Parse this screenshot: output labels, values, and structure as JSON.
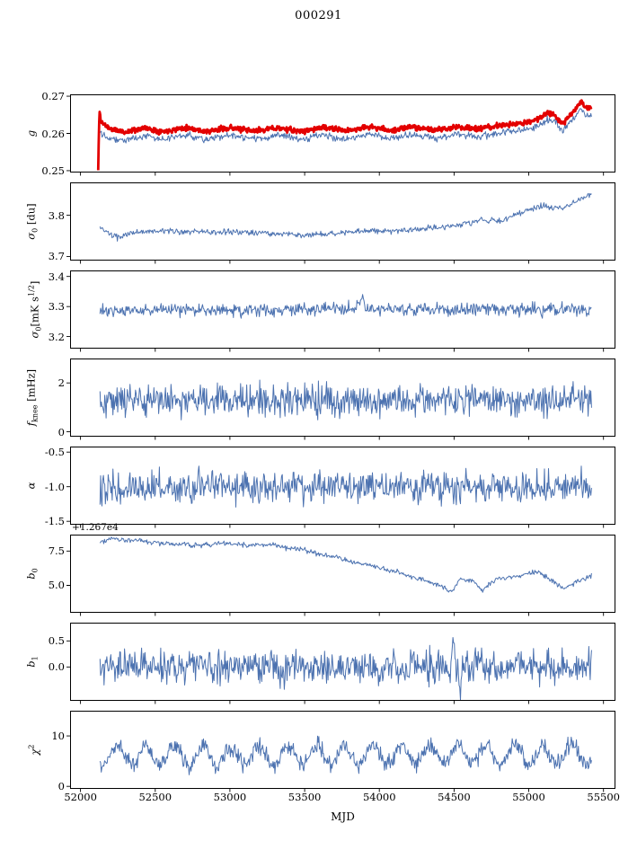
{
  "title": "000291",
  "xlabel": "MJD",
  "colors": {
    "line_blue": "#4c72b0",
    "line_red": "#e30000",
    "axis": "#000000"
  },
  "x_axis": {
    "lim": [
      51930,
      55580
    ],
    "ticks": [
      52000,
      52500,
      53000,
      53500,
      54000,
      54500,
      55000,
      55500
    ],
    "tick_labels": [
      "52000",
      "52500",
      "53000",
      "53500",
      "54000",
      "54500",
      "55000",
      "55500"
    ]
  },
  "chart_data": [
    {
      "id": "g",
      "type": "line",
      "ylabel_text": "g",
      "ylabel_parts": [
        {
          "t": "g",
          "style": "italic"
        }
      ],
      "ylim": [
        0.2495,
        0.2705
      ],
      "yticks": [
        0.25,
        0.26,
        0.27
      ],
      "ytick_labels": [
        "0.25",
        "0.26",
        "0.27"
      ],
      "series": [
        {
          "name": "g-blue",
          "color": "#4c72b0",
          "width": 1.0,
          "noise": 0.00045,
          "n": 700,
          "seed": 22,
          "x_range": [
            52130,
            55420
          ],
          "trend": [
            [
              52130,
              0.2606
            ],
            [
              52160,
              0.2596
            ],
            [
              52220,
              0.2586
            ],
            [
              52300,
              0.2581
            ],
            [
              52420,
              0.2594
            ],
            [
              52550,
              0.2584
            ],
            [
              52700,
              0.2595
            ],
            [
              52850,
              0.2584
            ],
            [
              53000,
              0.2595
            ],
            [
              53150,
              0.2585
            ],
            [
              53320,
              0.2594
            ],
            [
              53470,
              0.2584
            ],
            [
              53620,
              0.2595
            ],
            [
              53780,
              0.2586
            ],
            [
              53930,
              0.2597
            ],
            [
              54080,
              0.2587
            ],
            [
              54230,
              0.2597
            ],
            [
              54380,
              0.2587
            ],
            [
              54520,
              0.2597
            ],
            [
              54670,
              0.2591
            ],
            [
              54820,
              0.2602
            ],
            [
              54960,
              0.2608
            ],
            [
              55060,
              0.2618
            ],
            [
              55120,
              0.2638
            ],
            [
              55170,
              0.2632
            ],
            [
              55230,
              0.2608
            ],
            [
              55290,
              0.2638
            ],
            [
              55355,
              0.2664
            ],
            [
              55390,
              0.2645
            ],
            [
              55420,
              0.2652
            ]
          ]
        },
        {
          "name": "g-red",
          "color": "#e30000",
          "width": 2.8,
          "noise": 0.00035,
          "n": 1000,
          "seed": 11,
          "x_range": [
            52118,
            55420
          ],
          "trend": [
            [
              52118,
              0.25
            ],
            [
              52126,
              0.266
            ],
            [
              52140,
              0.263
            ],
            [
              52200,
              0.2612
            ],
            [
              52300,
              0.2603
            ],
            [
              52420,
              0.2615
            ],
            [
              52550,
              0.2605
            ],
            [
              52700,
              0.2616
            ],
            [
              52850,
              0.2605
            ],
            [
              53000,
              0.2616
            ],
            [
              53150,
              0.2606
            ],
            [
              53320,
              0.2615
            ],
            [
              53470,
              0.2605
            ],
            [
              53620,
              0.2616
            ],
            [
              53780,
              0.2607
            ],
            [
              53930,
              0.2618
            ],
            [
              54080,
              0.2608
            ],
            [
              54230,
              0.2618
            ],
            [
              54380,
              0.2608
            ],
            [
              54520,
              0.2618
            ],
            [
              54670,
              0.2612
            ],
            [
              54820,
              0.2622
            ],
            [
              54960,
              0.2627
            ],
            [
              55060,
              0.2638
            ],
            [
              55120,
              0.2656
            ],
            [
              55170,
              0.265
            ],
            [
              55230,
              0.2627
            ],
            [
              55290,
              0.2656
            ],
            [
              55355,
              0.2686
            ],
            [
              55390,
              0.2665
            ],
            [
              55420,
              0.2672
            ]
          ]
        }
      ]
    },
    {
      "id": "sigma0-du",
      "type": "line",
      "ylabel_text": "sigma_0 [du]",
      "ylabel_parts": [
        {
          "t": "σ",
          "style": "italic"
        },
        {
          "t": "0",
          "style": "sub"
        },
        {
          "t": " [du]"
        }
      ],
      "ylim": [
        3.69,
        3.88
      ],
      "yticks": [
        3.7,
        3.8
      ],
      "ytick_labels": [
        "3.7",
        "3.8"
      ],
      "series": [
        {
          "name": "sigma0-du",
          "color": "#4c72b0",
          "width": 1.0,
          "noise": 0.0035,
          "n": 650,
          "seed": 33,
          "x_range": [
            52130,
            55420
          ],
          "trend": [
            [
              52130,
              3.77
            ],
            [
              52200,
              3.752
            ],
            [
              52260,
              3.745
            ],
            [
              52340,
              3.758
            ],
            [
              52500,
              3.762
            ],
            [
              52700,
              3.76
            ],
            [
              52900,
              3.758
            ],
            [
              53100,
              3.76
            ],
            [
              53300,
              3.755
            ],
            [
              53500,
              3.752
            ],
            [
              53700,
              3.756
            ],
            [
              53900,
              3.762
            ],
            [
              54100,
              3.762
            ],
            [
              54300,
              3.768
            ],
            [
              54450,
              3.772
            ],
            [
              54600,
              3.782
            ],
            [
              54700,
              3.79
            ],
            [
              54800,
              3.785
            ],
            [
              54900,
              3.8
            ],
            [
              55000,
              3.812
            ],
            [
              55080,
              3.825
            ],
            [
              55150,
              3.82
            ],
            [
              55250,
              3.818
            ],
            [
              55320,
              3.835
            ],
            [
              55420,
              3.85
            ]
          ]
        }
      ]
    },
    {
      "id": "sigma0-mks",
      "type": "line",
      "ylabel_text": "sigma_0 [mK s^1/2]",
      "ylabel_parts": [
        {
          "t": "σ",
          "style": "italic"
        },
        {
          "t": "0",
          "style": "sub"
        },
        {
          "t": "[mK s"
        },
        {
          "t": "1/2",
          "style": "sup"
        },
        {
          "t": "]"
        }
      ],
      "ylim": [
        3.16,
        3.42
      ],
      "yticks": [
        3.2,
        3.3,
        3.4
      ],
      "ytick_labels": [
        "3.2",
        "3.3",
        "3.4"
      ],
      "series": [
        {
          "name": "sigma0-mks",
          "color": "#4c72b0",
          "width": 1.0,
          "noise": 0.011,
          "n": 700,
          "seed": 44,
          "x_range": [
            52130,
            55420
          ],
          "trend": [
            [
              52130,
              3.285
            ],
            [
              52800,
              3.29
            ],
            [
              53400,
              3.288
            ],
            [
              53850,
              3.295
            ],
            [
              53880,
              3.33
            ],
            [
              53910,
              3.295
            ],
            [
              54300,
              3.29
            ],
            [
              54800,
              3.292
            ],
            [
              55420,
              3.29
            ]
          ]
        }
      ]
    },
    {
      "id": "fknee",
      "type": "line",
      "ylabel_text": "f_knee [mHz]",
      "ylabel_parts": [
        {
          "t": "f",
          "style": "italic"
        },
        {
          "t": "knee",
          "style": "sub"
        },
        {
          "t": " [mHz]"
        }
      ],
      "ylim": [
        -0.2,
        3.0
      ],
      "yticks": [
        0,
        2
      ],
      "ytick_labels": [
        "0",
        "2"
      ],
      "series": [
        {
          "name": "fknee",
          "color": "#4c72b0",
          "width": 1.0,
          "noise": 0.32,
          "n": 720,
          "seed": 55,
          "x_range": [
            52130,
            55420
          ],
          "trend": [
            [
              52130,
              1.32
            ],
            [
              53000,
              1.3
            ],
            [
              54000,
              1.28
            ],
            [
              55420,
              1.26
            ]
          ]
        }
      ]
    },
    {
      "id": "alpha",
      "type": "line",
      "ylabel_text": "alpha",
      "ylabel_parts": [
        {
          "t": "α",
          "style": "italic"
        }
      ],
      "ylim": [
        -1.55,
        -0.42
      ],
      "yticks": [
        -1.5,
        -1.0,
        -0.5
      ],
      "ytick_labels": [
        "-1.5",
        "-1.0",
        "-0.5"
      ],
      "series": [
        {
          "name": "alpha",
          "color": "#4c72b0",
          "width": 1.0,
          "noise": 0.115,
          "n": 720,
          "seed": 66,
          "x_range": [
            52130,
            55420
          ],
          "trend": [
            [
              52130,
              -1.0
            ],
            [
              55420,
              -1.0
            ]
          ]
        }
      ]
    },
    {
      "id": "b0",
      "type": "line",
      "ylabel_text": "b_0",
      "ylabel_parts": [
        {
          "t": "b",
          "style": "italic"
        },
        {
          "t": "0",
          "style": "sub"
        }
      ],
      "offset_text": "+1.267e4",
      "ylim": [
        3.0,
        8.7
      ],
      "yticks": [
        5.0,
        7.5
      ],
      "ytick_labels": [
        "5.0",
        "7.5"
      ],
      "series": [
        {
          "name": "b0",
          "color": "#4c72b0",
          "width": 1.0,
          "noise": 0.09,
          "n": 650,
          "seed": 77,
          "x_range": [
            52130,
            55420
          ],
          "trend": [
            [
              52130,
              8.15
            ],
            [
              52200,
              8.45
            ],
            [
              52280,
              8.35
            ],
            [
              52400,
              8.25
            ],
            [
              52550,
              8.05
            ],
            [
              52700,
              7.95
            ],
            [
              52850,
              7.95
            ],
            [
              53000,
              8.1
            ],
            [
              53100,
              7.9
            ],
            [
              53200,
              7.95
            ],
            [
              53300,
              8.0
            ],
            [
              53380,
              7.7
            ],
            [
              53500,
              7.55
            ],
            [
              53600,
              7.3
            ],
            [
              53700,
              7.05
            ],
            [
              53800,
              6.75
            ],
            [
              53900,
              6.55
            ],
            [
              54000,
              6.25
            ],
            [
              54100,
              6.05
            ],
            [
              54200,
              5.65
            ],
            [
              54300,
              5.4
            ],
            [
              54400,
              5.05
            ],
            [
              54480,
              4.45
            ],
            [
              54540,
              5.45
            ],
            [
              54620,
              5.35
            ],
            [
              54690,
              4.6
            ],
            [
              54780,
              5.45
            ],
            [
              54880,
              5.6
            ],
            [
              54980,
              5.8
            ],
            [
              55080,
              5.95
            ],
            [
              55160,
              5.3
            ],
            [
              55230,
              4.8
            ],
            [
              55320,
              5.25
            ],
            [
              55420,
              5.75
            ]
          ]
        }
      ]
    },
    {
      "id": "b1",
      "type": "line",
      "ylabel_text": "b_1",
      "ylabel_parts": [
        {
          "t": "b",
          "style": "italic"
        },
        {
          "t": "1",
          "style": "sub"
        }
      ],
      "ylim": [
        -0.65,
        0.85
      ],
      "yticks": [
        0.0,
        0.5
      ],
      "ytick_labels": [
        "0.0",
        "0.5"
      ],
      "series": [
        {
          "name": "b1",
          "color": "#4c72b0",
          "width": 1.0,
          "noise": 0.16,
          "n": 720,
          "seed": 88,
          "x_range": [
            52130,
            55420
          ],
          "trend": [
            [
              52130,
              0.02
            ],
            [
              54480,
              0.0
            ],
            [
              54497,
              0.6
            ],
            [
              54515,
              0.0
            ],
            [
              54540,
              -0.45
            ],
            [
              54560,
              0.0
            ],
            [
              55420,
              0.02
            ]
          ]
        }
      ]
    },
    {
      "id": "chi2",
      "type": "line",
      "ylabel_text": "chi^2",
      "ylabel_parts": [
        {
          "t": "χ",
          "style": "italic"
        },
        {
          "t": "2",
          "style": "sup"
        }
      ],
      "ylim": [
        -0.5,
        15.0
      ],
      "yticks": [
        0,
        10
      ],
      "ytick_labels": [
        "0",
        "10"
      ],
      "series": [
        {
          "name": "chi2",
          "color": "#4c72b0",
          "width": 1.0,
          "noise": 0.85,
          "n": 750,
          "seed": 99,
          "x_range": [
            52130,
            55420
          ],
          "seasonal": {
            "amp": 1.9,
            "period": 190,
            "x0": 52200
          },
          "trend": [
            [
              52130,
              6.2
            ],
            [
              53000,
              6.0
            ],
            [
              54000,
              6.3
            ],
            [
              55420,
              6.4
            ]
          ]
        }
      ]
    }
  ]
}
